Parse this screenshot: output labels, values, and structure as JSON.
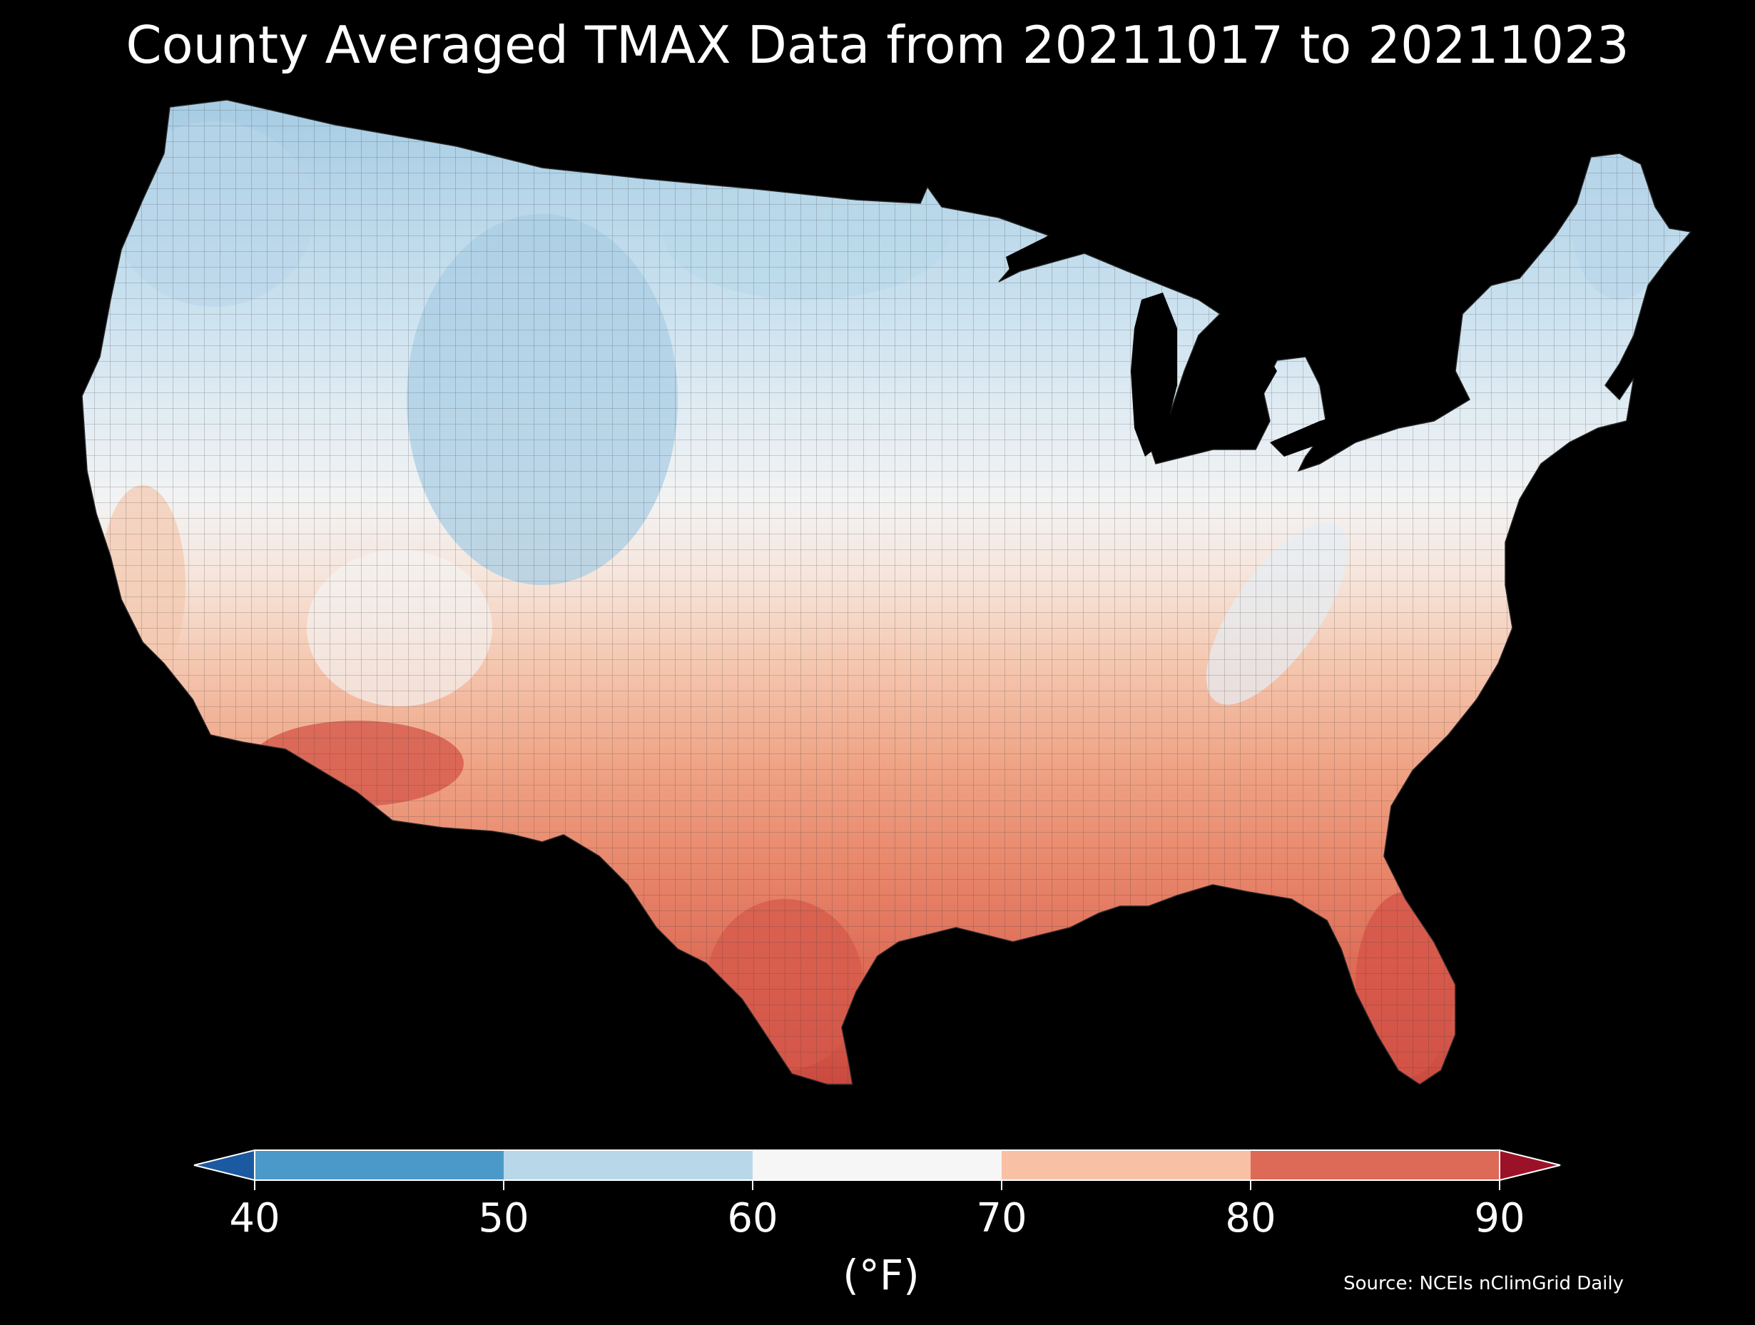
{
  "title": "County Averaged TMAX Data from 20211017 to 20211023",
  "colorbar": {
    "unit": "(°F)",
    "ticks": [
      "40",
      "50",
      "60",
      "70",
      "80",
      "90"
    ],
    "extend": "both",
    "bins": [
      {
        "from": 40,
        "to": 50,
        "color": "#4b99c9"
      },
      {
        "from": 50,
        "to": 60,
        "color": "#b8d8ea"
      },
      {
        "from": 60,
        "to": 70,
        "color": "#f6f6f6"
      },
      {
        "from": 70,
        "to": 80,
        "color": "#f8c1a6"
      },
      {
        "from": 80,
        "to": 90,
        "color": "#dc6a56"
      }
    ],
    "under_color": "#1b5aa0",
    "over_color": "#9b1228"
  },
  "source": "Source: NCEIs nClimGrid Daily",
  "map": {
    "subject": "contiguous-united-states",
    "variable": "TMAX",
    "cold_region": "north",
    "warm_region": "south"
  }
}
